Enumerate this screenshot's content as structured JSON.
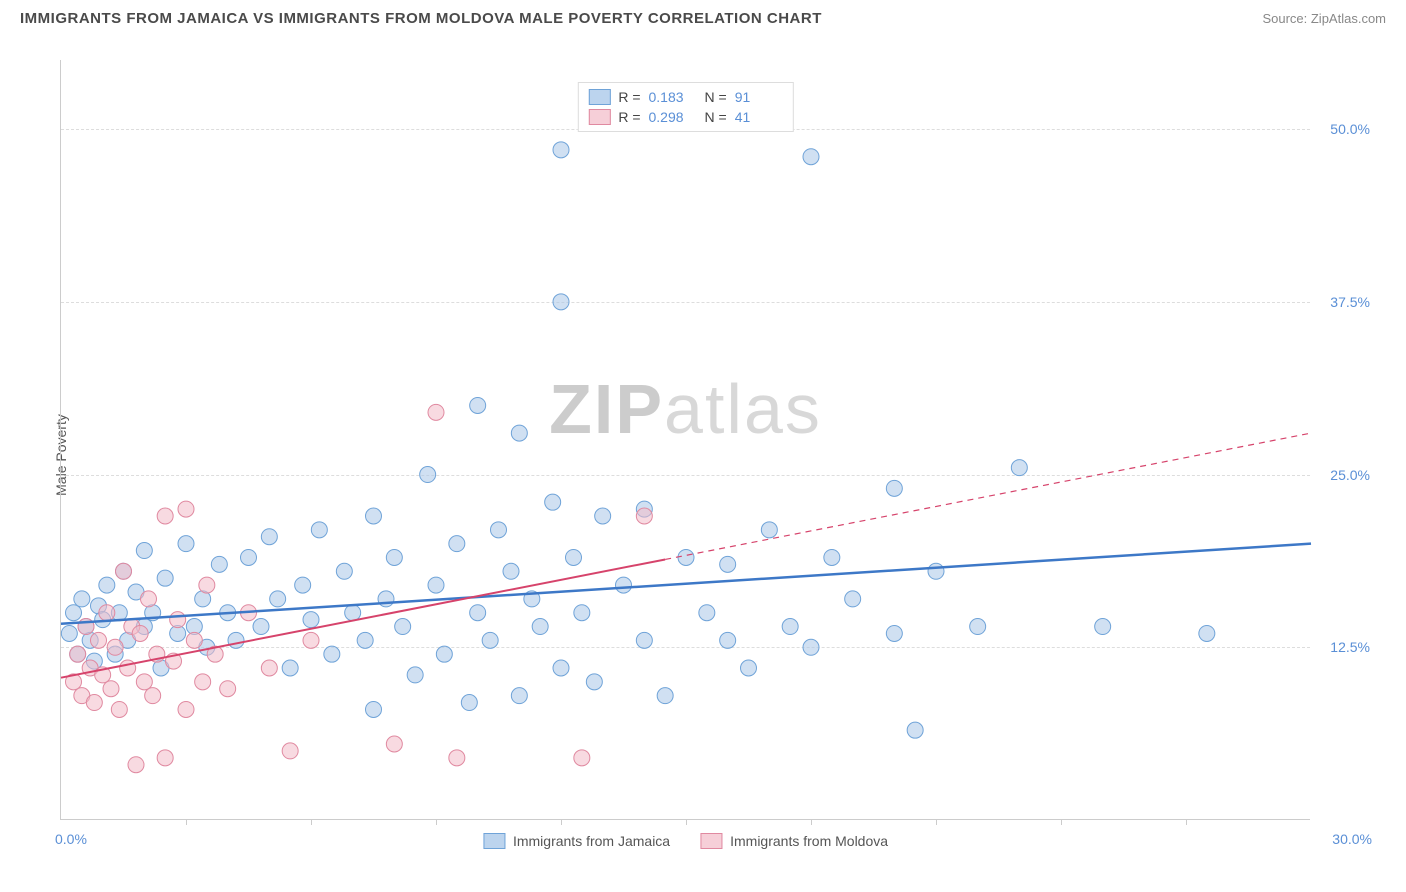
{
  "header": {
    "title": "IMMIGRANTS FROM JAMAICA VS IMMIGRANTS FROM MOLDOVA MALE POVERTY CORRELATION CHART",
    "source_label": "Source: ZipAtlas.com"
  },
  "chart": {
    "type": "scatter",
    "ylabel": "Male Poverty",
    "watermark": "ZIPatlas",
    "background_color": "#ffffff",
    "grid_color": "#dddddd",
    "axis_color": "#cccccc",
    "tick_label_color": "#5a8fd6",
    "xlim": [
      0,
      30
    ],
    "ylim": [
      0,
      55
    ],
    "y_ticks": [
      12.5,
      25.0,
      37.5,
      50.0
    ],
    "y_tick_labels": [
      "12.5%",
      "25.0%",
      "37.5%",
      "50.0%"
    ],
    "x_tick_labels": {
      "left": "0.0%",
      "right": "30.0%"
    },
    "x_minor_ticks": [
      3,
      6,
      9,
      12,
      15,
      18,
      21,
      24,
      27
    ],
    "marker_radius": 8,
    "marker_opacity": 0.55,
    "series": [
      {
        "name": "Immigrants from Jamaica",
        "color_fill": "#a9c7e8",
        "color_stroke": "#6fa3d8",
        "swatch_fill": "#bcd4ee",
        "swatch_border": "#6fa3d8",
        "R": "0.183",
        "N": "91",
        "trend": {
          "color": "#3d78c7",
          "width": 2.5,
          "x1": 0,
          "y1": 14.2,
          "x2": 30,
          "y2": 20.0,
          "dash_after_x": null
        },
        "points": [
          [
            0.2,
            13.5
          ],
          [
            0.3,
            15.0
          ],
          [
            0.4,
            12.0
          ],
          [
            0.5,
            16.0
          ],
          [
            0.6,
            14.0
          ],
          [
            0.7,
            13.0
          ],
          [
            0.8,
            11.5
          ],
          [
            0.9,
            15.5
          ],
          [
            1.0,
            14.5
          ],
          [
            1.1,
            17.0
          ],
          [
            1.3,
            12.0
          ],
          [
            1.4,
            15.0
          ],
          [
            1.5,
            18.0
          ],
          [
            1.6,
            13.0
          ],
          [
            1.8,
            16.5
          ],
          [
            2.0,
            14.0
          ],
          [
            2.0,
            19.5
          ],
          [
            2.2,
            15.0
          ],
          [
            2.4,
            11.0
          ],
          [
            2.5,
            17.5
          ],
          [
            2.8,
            13.5
          ],
          [
            3.0,
            20.0
          ],
          [
            3.2,
            14.0
          ],
          [
            3.4,
            16.0
          ],
          [
            3.5,
            12.5
          ],
          [
            3.8,
            18.5
          ],
          [
            4.0,
            15.0
          ],
          [
            4.2,
            13.0
          ],
          [
            4.5,
            19.0
          ],
          [
            4.8,
            14.0
          ],
          [
            5.0,
            20.5
          ],
          [
            5.2,
            16.0
          ],
          [
            5.5,
            11.0
          ],
          [
            5.8,
            17.0
          ],
          [
            6.0,
            14.5
          ],
          [
            6.2,
            21.0
          ],
          [
            6.5,
            12.0
          ],
          [
            6.8,
            18.0
          ],
          [
            7.0,
            15.0
          ],
          [
            7.3,
            13.0
          ],
          [
            7.5,
            22.0
          ],
          [
            7.5,
            8.0
          ],
          [
            7.8,
            16.0
          ],
          [
            8.0,
            19.0
          ],
          [
            8.2,
            14.0
          ],
          [
            8.5,
            10.5
          ],
          [
            8.8,
            25.0
          ],
          [
            9.0,
            17.0
          ],
          [
            9.2,
            12.0
          ],
          [
            9.5,
            20.0
          ],
          [
            9.8,
            8.5
          ],
          [
            10.0,
            15.0
          ],
          [
            10.0,
            30.0
          ],
          [
            10.3,
            13.0
          ],
          [
            10.5,
            21.0
          ],
          [
            10.8,
            18.0
          ],
          [
            11.0,
            28.0
          ],
          [
            11.0,
            9.0
          ],
          [
            11.3,
            16.0
          ],
          [
            11.5,
            14.0
          ],
          [
            11.8,
            23.0
          ],
          [
            12.0,
            48.5
          ],
          [
            12.0,
            11.0
          ],
          [
            12.0,
            37.5
          ],
          [
            12.3,
            19.0
          ],
          [
            12.5,
            15.0
          ],
          [
            12.8,
            10.0
          ],
          [
            13.0,
            22.0
          ],
          [
            13.5,
            17.0
          ],
          [
            14.0,
            13.0
          ],
          [
            14.0,
            22.5
          ],
          [
            14.5,
            9.0
          ],
          [
            15.0,
            19.0
          ],
          [
            15.5,
            15.0
          ],
          [
            16.0,
            13.0
          ],
          [
            16.0,
            18.5
          ],
          [
            16.5,
            11.0
          ],
          [
            17.0,
            21.0
          ],
          [
            17.5,
            14.0
          ],
          [
            18.0,
            48.0
          ],
          [
            18.0,
            12.5
          ],
          [
            18.5,
            19.0
          ],
          [
            19.0,
            16.0
          ],
          [
            20.0,
            13.5
          ],
          [
            20.0,
            24.0
          ],
          [
            20.5,
            6.5
          ],
          [
            21.0,
            18.0
          ],
          [
            22.0,
            14.0
          ],
          [
            23.0,
            25.5
          ],
          [
            25.0,
            14.0
          ],
          [
            27.5,
            13.5
          ]
        ]
      },
      {
        "name": "Immigrants from Moldova",
        "color_fill": "#f2bcc8",
        "color_stroke": "#e089a0",
        "swatch_fill": "#f6cfd8",
        "swatch_border": "#e089a0",
        "R": "0.298",
        "N": "41",
        "trend": {
          "color": "#d6436b",
          "width": 2,
          "x1": 0,
          "y1": 10.3,
          "x2": 30,
          "y2": 28.0,
          "dash_after_x": 14.5
        },
        "points": [
          [
            0.3,
            10.0
          ],
          [
            0.4,
            12.0
          ],
          [
            0.5,
            9.0
          ],
          [
            0.6,
            14.0
          ],
          [
            0.7,
            11.0
          ],
          [
            0.8,
            8.5
          ],
          [
            0.9,
            13.0
          ],
          [
            1.0,
            10.5
          ],
          [
            1.1,
            15.0
          ],
          [
            1.2,
            9.5
          ],
          [
            1.3,
            12.5
          ],
          [
            1.4,
            8.0
          ],
          [
            1.5,
            18.0
          ],
          [
            1.6,
            11.0
          ],
          [
            1.7,
            14.0
          ],
          [
            1.8,
            4.0
          ],
          [
            1.9,
            13.5
          ],
          [
            2.0,
            10.0
          ],
          [
            2.1,
            16.0
          ],
          [
            2.2,
            9.0
          ],
          [
            2.3,
            12.0
          ],
          [
            2.5,
            4.5
          ],
          [
            2.5,
            22.0
          ],
          [
            2.7,
            11.5
          ],
          [
            2.8,
            14.5
          ],
          [
            3.0,
            22.5
          ],
          [
            3.0,
            8.0
          ],
          [
            3.2,
            13.0
          ],
          [
            3.4,
            10.0
          ],
          [
            3.5,
            17.0
          ],
          [
            3.7,
            12.0
          ],
          [
            4.0,
            9.5
          ],
          [
            4.5,
            15.0
          ],
          [
            5.0,
            11.0
          ],
          [
            5.5,
            5.0
          ],
          [
            6.0,
            13.0
          ],
          [
            8.0,
            5.5
          ],
          [
            9.0,
            29.5
          ],
          [
            9.5,
            4.5
          ],
          [
            12.5,
            4.5
          ],
          [
            14.0,
            22.0
          ]
        ]
      }
    ]
  }
}
